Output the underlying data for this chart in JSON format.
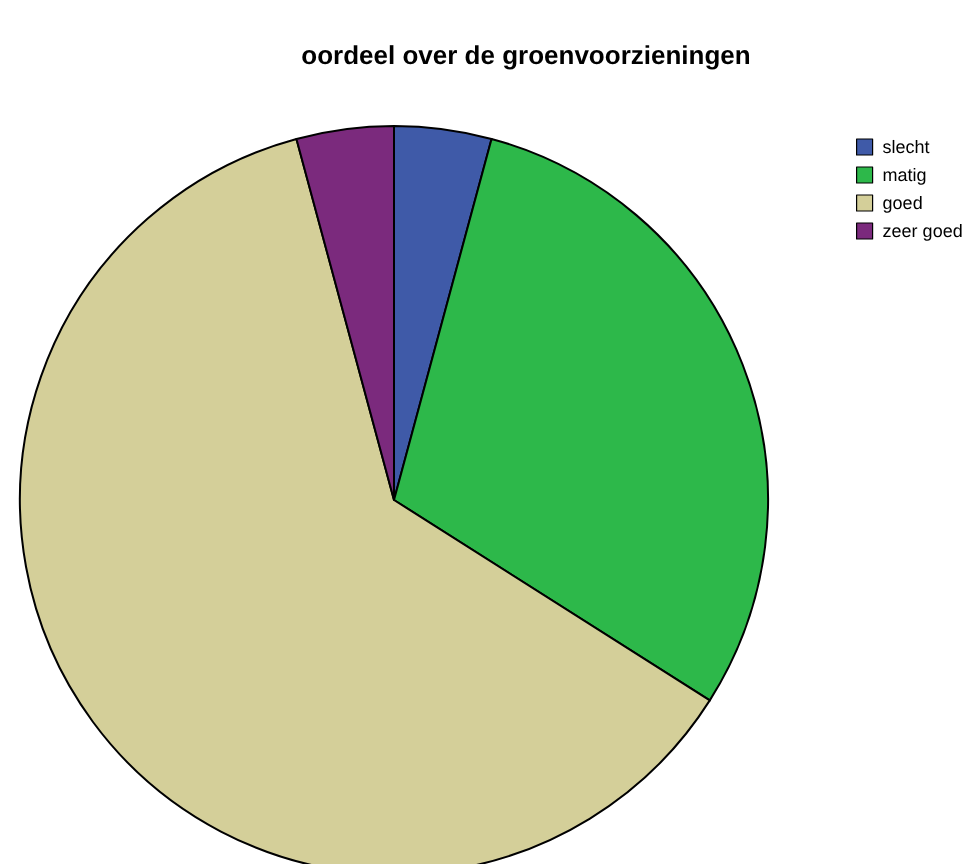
{
  "chart_data": {
    "type": "pie",
    "title": "oordeel over de groenvoorzieningen",
    "categories": [
      "slecht",
      "matig",
      "goed",
      "zeer goed"
    ],
    "values": [
      4.2,
      29.8,
      61.8,
      4.2
    ],
    "colors": [
      "#3f5aa8",
      "#2db84a",
      "#d4cf99",
      "#7b2a7d"
    ],
    "legend": "top right"
  }
}
